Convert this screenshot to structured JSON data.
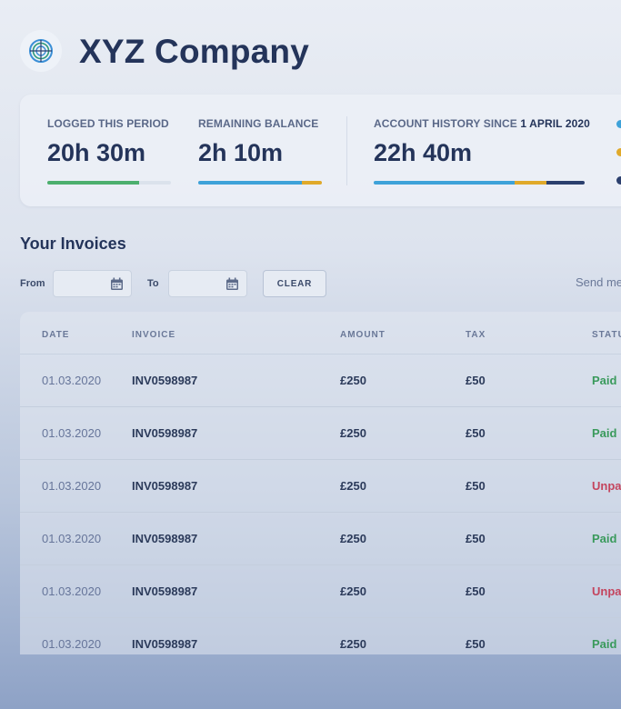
{
  "header": {
    "company_name": "XYZ Company",
    "logo_icon": "globe-fingerprint-icon"
  },
  "stats": {
    "logged": {
      "label": "LOGGED THIS PERIOD",
      "value": "20h 30m",
      "progress": 0.74,
      "color": "#4caf6e"
    },
    "remaining": {
      "label": "REMAINING BALANCE",
      "value": "2h 10m",
      "segments": [
        {
          "fraction": 0.84,
          "color": "#3ea2d9"
        },
        {
          "fraction": 0.16,
          "color": "#e0a92a"
        }
      ]
    },
    "history": {
      "label_prefix": "ACCOUNT HISTORY SINCE ",
      "label_date": "1 APRIL 2020",
      "value": "22h 40m",
      "segments": [
        {
          "fraction": 0.67,
          "color": "#3ea2d9"
        },
        {
          "fraction": 0.15,
          "color": "#e0a92a"
        },
        {
          "fraction": 0.18,
          "color": "#2b3f6e"
        }
      ]
    },
    "legend_colors": [
      "#3ea2d9",
      "#e0a92a",
      "#2b3f6e"
    ]
  },
  "invoices": {
    "title": "Your Invoices",
    "filter": {
      "from_label": "From",
      "to_label": "To",
      "from_value": "",
      "to_value": "",
      "clear_label": "CLEAR",
      "send_label": "Send me"
    },
    "columns": [
      "DATE",
      "INVOICE",
      "AMOUNT",
      "TAX",
      "STATUS"
    ],
    "rows": [
      {
        "date": "01.03.2020",
        "invoice": "INV0598987",
        "amount": "£250",
        "tax": "£50",
        "status": "Paid"
      },
      {
        "date": "01.03.2020",
        "invoice": "INV0598987",
        "amount": "£250",
        "tax": "£50",
        "status": "Paid"
      },
      {
        "date": "01.03.2020",
        "invoice": "INV0598987",
        "amount": "£250",
        "tax": "£50",
        "status": "Unpaid"
      },
      {
        "date": "01.03.2020",
        "invoice": "INV0598987",
        "amount": "£250",
        "tax": "£50",
        "status": "Paid"
      },
      {
        "date": "01.03.2020",
        "invoice": "INV0598987",
        "amount": "£250",
        "tax": "£50",
        "status": "Unpaid"
      },
      {
        "date": "01.03.2020",
        "invoice": "INV0598987",
        "amount": "£250",
        "tax": "£50",
        "status": "Paid"
      }
    ],
    "status_colors": {
      "Paid": "#3a9a5c",
      "Unpaid": "#c4455e"
    }
  }
}
